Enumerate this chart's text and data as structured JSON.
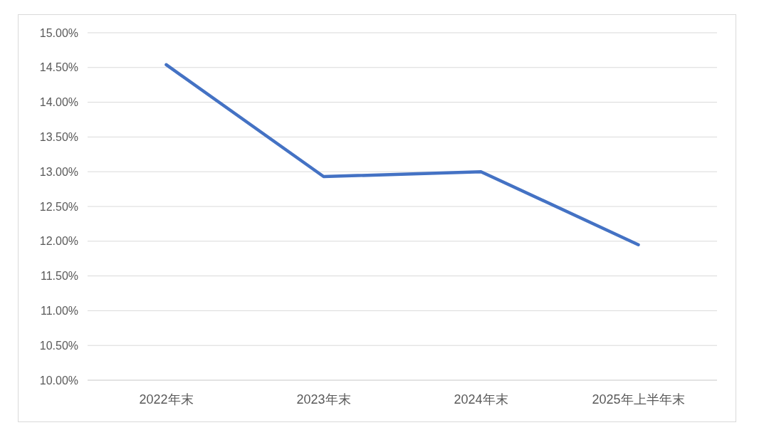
{
  "chart_data": {
    "type": "line",
    "categories": [
      "2022年末",
      "2023年末",
      "2024年末",
      "2025年上半年末"
    ],
    "series": [
      {
        "color": "#4472c4",
        "values": [
          14.54,
          12.93,
          13.0,
          11.95
        ]
      }
    ],
    "ylim": [
      10,
      15
    ],
    "yticks": [
      {
        "value": 10,
        "label": "10.00%"
      },
      {
        "value": 10.5,
        "label": "10.50%"
      },
      {
        "value": 11,
        "label": "11.00%"
      },
      {
        "value": 11.5,
        "label": "11.50%"
      },
      {
        "value": 12,
        "label": "12.00%"
      },
      {
        "value": 12.5,
        "label": "12.50%"
      },
      {
        "value": 13,
        "label": "13.00%"
      },
      {
        "value": 13.5,
        "label": "13.50%"
      },
      {
        "value": 14,
        "label": "14.00%"
      },
      {
        "value": 14.5,
        "label": "14.50%"
      },
      {
        "value": 15,
        "label": "15.00%"
      }
    ],
    "grid": "y",
    "marker": "none",
    "line_style": "solid"
  }
}
